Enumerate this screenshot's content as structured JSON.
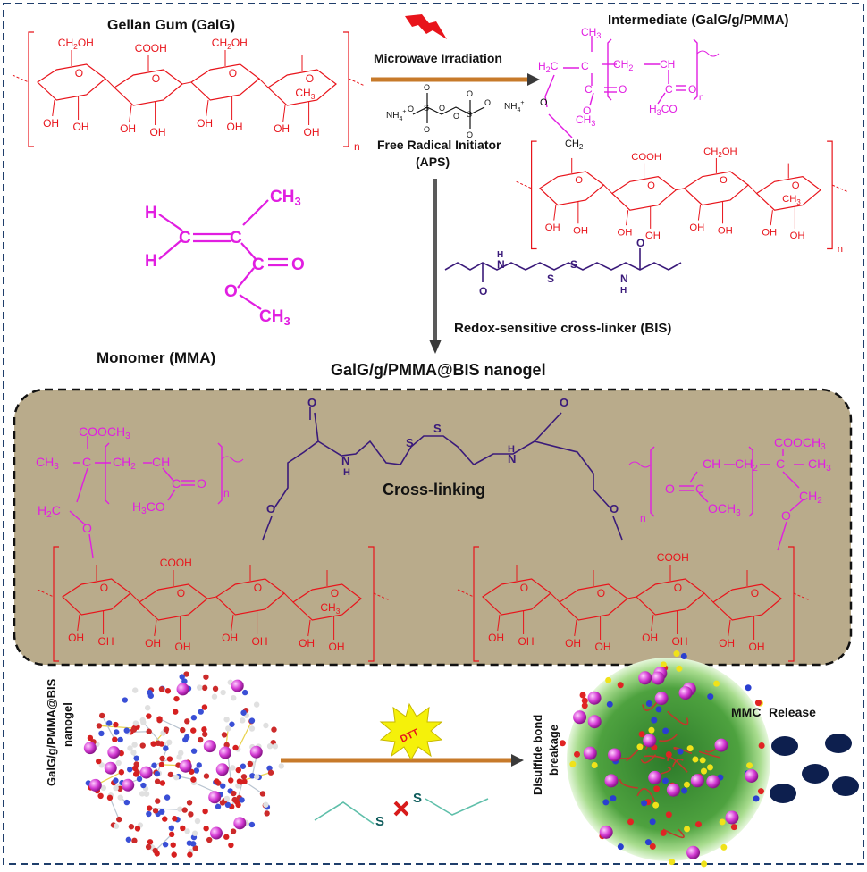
{
  "titles": {
    "gellan_gum": "Gellan Gum (GalG)",
    "intermediate": "Intermediate (GalG/g/PMMA)",
    "microwave": "Microwave Irradiation",
    "initiator": "Free Radical Initiator",
    "initiator_abbr": "(APS)",
    "monomer": "Monomer (MMA)",
    "crosslinker": "Redox-sensitive cross-linker (BIS)",
    "nanogel": "GalG/g/PMMA@BIS nanogel",
    "crosslinking": "Cross-linking",
    "nanogel_vertical": "GalG/g/PMMA@BIS",
    "nanogel_vertical2": "nanogel",
    "dtt": "DTT",
    "disulfide": "Disulfide bond",
    "disulfide2": "breakage",
    "mmc": "MMC",
    "release": "Release"
  },
  "chem": {
    "ch2oh": "CH",
    "ch2oh_sub": "2",
    "ch2oh_tail": "OH",
    "cooh": "COOH",
    "oh": "OH",
    "o": "O",
    "ch3": "CH",
    "sub3": "3",
    "h": "H",
    "c": "C",
    "n": "n",
    "s": "S",
    "nh4": "NH",
    "nh4_sub": "4",
    "plus": "+",
    "cooch3": "COOCH",
    "ch2": "CH",
    "sub2": "2",
    "ch": "CH",
    "h3co": "H",
    "h3co_tail": "CO",
    "nh": "N",
    "nh_h": "H",
    "och3": "OCH",
    "h3c": "H",
    "h3c_tail": "C",
    "h2c": "H",
    "h2c_tail": "C"
  },
  "colors": {
    "gum": "#e8141b",
    "pmma": "#e11ee1",
    "linker": "#3a1a7a",
    "panel": "#b9ab8b",
    "mmc": "#0d1f4e",
    "dtt": "#f5f10a"
  }
}
